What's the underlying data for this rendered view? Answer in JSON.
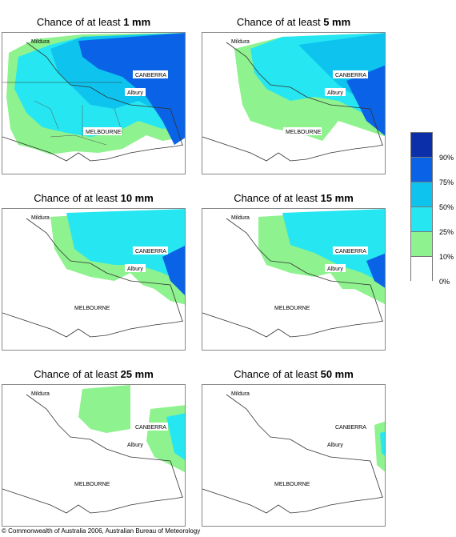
{
  "panels": [
    {
      "prefix": "Chance of at least ",
      "amount": "1 mm"
    },
    {
      "prefix": "Chance of at least ",
      "amount": "5 mm"
    },
    {
      "prefix": "Chance of at least ",
      "amount": "10 mm"
    },
    {
      "prefix": "Chance of at least ",
      "amount": "15 mm"
    },
    {
      "prefix": "Chance of at least ",
      "amount": "25 mm"
    },
    {
      "prefix": "Chance of at least ",
      "amount": "50 mm"
    }
  ],
  "places": {
    "mildura": "Mildura",
    "canberra": "CANBERRA",
    "albury": "Albury",
    "melbourne": "MELBOURNE"
  },
  "legend": {
    "ticks": [
      "90%",
      "75%",
      "50%",
      "25%",
      "10%",
      "0%"
    ],
    "colors": [
      "#0a2fa8",
      "#0a63e6",
      "#0ec4ef",
      "#26e6f2",
      "#8ef28e",
      "#ffffff"
    ]
  },
  "copyright": "© Commonwealth of Australia 2006, Australian Bureau of Meteorology"
}
